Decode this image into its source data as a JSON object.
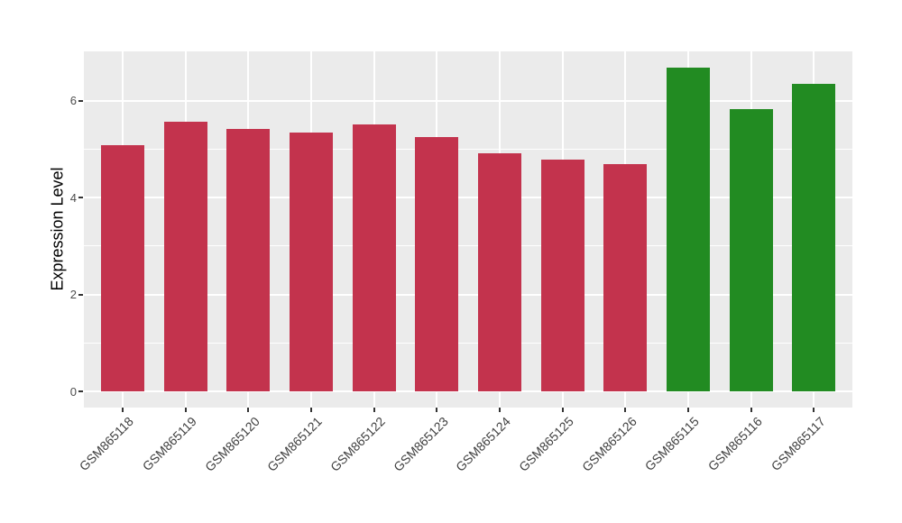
{
  "figure": {
    "background": "#FFFFFF"
  },
  "chart_data": {
    "type": "bar",
    "title": "",
    "xlabel": "",
    "ylabel": "Expression Level",
    "ylim": [
      0,
      7.02
    ],
    "yticks": [
      0,
      2,
      4,
      6
    ],
    "minor_gridlines": [
      1,
      3,
      5
    ],
    "grid": "on",
    "legend_position": "none",
    "panel_background": "#EBEBEB",
    "gridline_color": "#FFFFFF",
    "tick_label_color": "#4D4D4D",
    "axis_title_color": "#000000",
    "categories": [
      "GSM865118",
      "GSM865119",
      "GSM865120",
      "GSM865121",
      "GSM865122",
      "GSM865123",
      "GSM865124",
      "GSM865125",
      "GSM865126",
      "GSM865115",
      "GSM865116",
      "GSM865117"
    ],
    "values": [
      5.09,
      5.58,
      5.42,
      5.35,
      5.51,
      5.25,
      4.92,
      4.79,
      4.7,
      6.69,
      5.84,
      6.35
    ],
    "groups": [
      "red",
      "red",
      "red",
      "red",
      "red",
      "red",
      "red",
      "red",
      "red",
      "green",
      "green",
      "green"
    ],
    "group_colors": {
      "red": "#C3334D",
      "green": "#228B22"
    }
  }
}
